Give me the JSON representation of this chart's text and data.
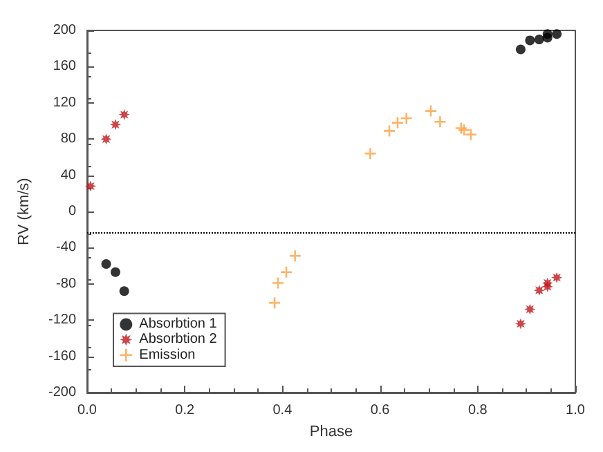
{
  "chart_data": {
    "type": "scatter",
    "xlabel": "Phase",
    "ylabel": "RV (km/s)",
    "xlim": [
      0,
      1
    ],
    "xticks": [
      {
        "value": 0,
        "label": "0.0"
      },
      {
        "value": 0.2,
        "label": "0.2"
      },
      {
        "value": 0.4,
        "label": "0.4"
      },
      {
        "value": 0.6,
        "label": "0.6"
      },
      {
        "value": 0.8,
        "label": "0.8"
      },
      {
        "value": 1,
        "label": "1.0"
      }
    ],
    "ylim": [
      -200,
      200
    ],
    "yticks": [
      -200,
      -160,
      -120,
      -80,
      -40,
      0,
      40,
      80,
      120,
      160,
      200
    ],
    "grid": false,
    "legend": "bottom left",
    "ref_lines": [
      {
        "axis": "y",
        "value": -23,
        "line_style": "dotted",
        "color": "#000000"
      }
    ],
    "series": [
      {
        "name": "Absorbtion 1",
        "color": "#000000",
        "marker": "circle",
        "x": [
          0.039,
          0.058,
          0.076,
          0.888,
          0.907,
          0.926,
          0.943,
          0.943,
          0.962
        ],
        "values": [
          -58,
          -67,
          -88,
          179,
          189,
          190,
          192,
          196,
          196
        ]
      },
      {
        "name": "Absorbtion 2",
        "color": "#c0161c",
        "marker": "star",
        "x": [
          0.007,
          0.039,
          0.058,
          0.076,
          0.888,
          0.907,
          0.926,
          0.943,
          0.943,
          0.962
        ],
        "values": [
          28,
          80,
          96,
          107,
          -124,
          -108,
          -87,
          -83,
          -79,
          -73
        ]
      },
      {
        "name": "Emission",
        "color": "#ffa040",
        "marker": "cross",
        "x": [
          0.384,
          0.391,
          0.408,
          0.426,
          0.58,
          0.619,
          0.636,
          0.654,
          0.704,
          0.723,
          0.766,
          0.772,
          0.786
        ],
        "values": [
          -101,
          -79,
          -67,
          -49,
          64,
          89,
          98,
          103,
          111,
          99,
          92,
          90,
          85
        ]
      }
    ]
  }
}
